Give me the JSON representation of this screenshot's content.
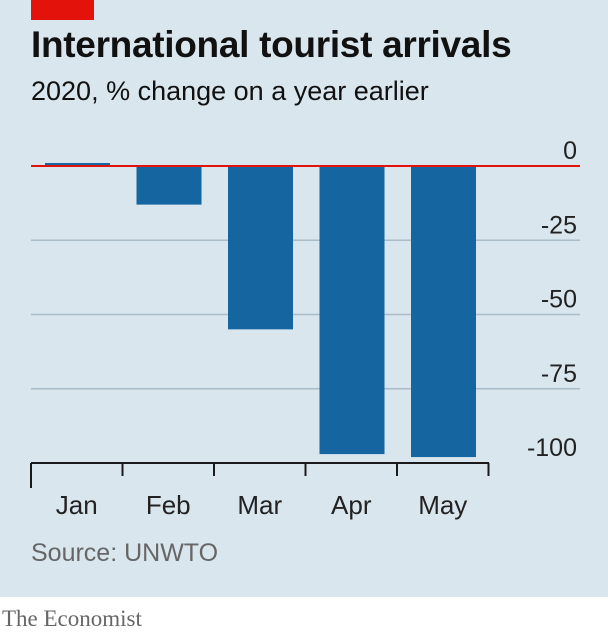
{
  "colors": {
    "background": "#d9e6ee",
    "bar": "#1465a0",
    "zero_line": "#e3120b",
    "brand_tag": "#e3120b",
    "grid": "#a9bcc8"
  },
  "chart_data": {
    "type": "bar",
    "title": "International tourist arrivals",
    "subtitle": "2020, % change on a year earlier",
    "categories": [
      "Jan",
      "Feb",
      "Mar",
      "Apr",
      "May"
    ],
    "values": [
      1,
      -13,
      -55,
      -97,
      -98
    ],
    "ylim": [
      -100,
      0
    ],
    "yticks": [
      "0",
      "-25",
      "-50",
      "-75",
      "-100"
    ],
    "ytick_values": [
      0,
      -25,
      -50,
      -75,
      -100
    ],
    "ylabel_position": "right",
    "grid": true
  },
  "source": "Source: UNWTO",
  "brand": "The Economist"
}
